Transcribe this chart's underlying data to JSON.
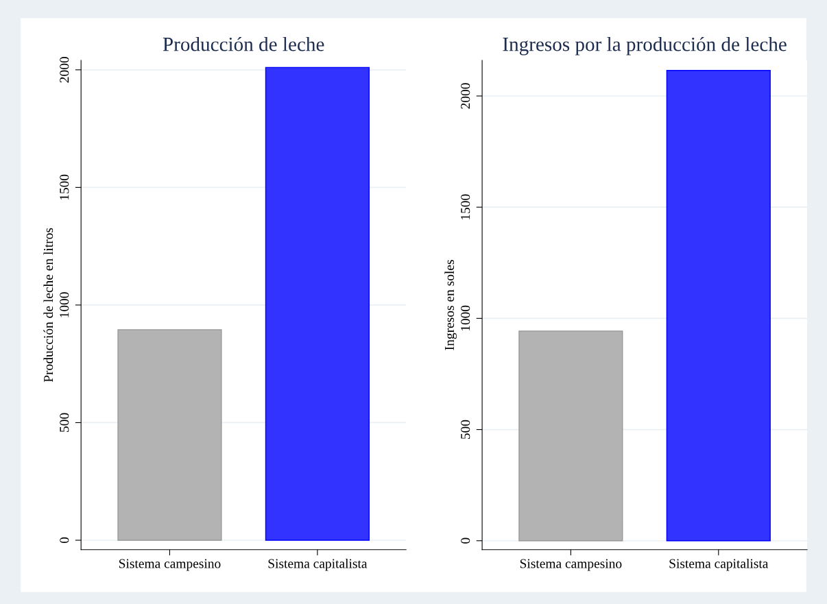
{
  "chart_data": [
    {
      "type": "bar",
      "title": "Producción de leche",
      "ylabel": "Producción de leche en litros",
      "categories": [
        "Sistema campesino",
        "Sistema capitalista"
      ],
      "values": [
        895,
        2010
      ],
      "colors": [
        "#b3b3b3",
        "#3333ff"
      ],
      "ylim": [
        -40,
        2040
      ],
      "yticks": [
        0,
        500,
        1000,
        1500,
        2000
      ],
      "grid": "y"
    },
    {
      "type": "bar",
      "title": "Ingresos por la producción de leche",
      "ylabel": "Ingresos en soles",
      "categories": [
        "Sistema campesino",
        "Sistema capitalista"
      ],
      "values": [
        943,
        2115
      ],
      "colors": [
        "#b3b3b3",
        "#3333ff"
      ],
      "ylim": [
        -40,
        2160
      ],
      "yticks": [
        0,
        500,
        1000,
        1500,
        2000
      ],
      "grid": "y"
    }
  ]
}
